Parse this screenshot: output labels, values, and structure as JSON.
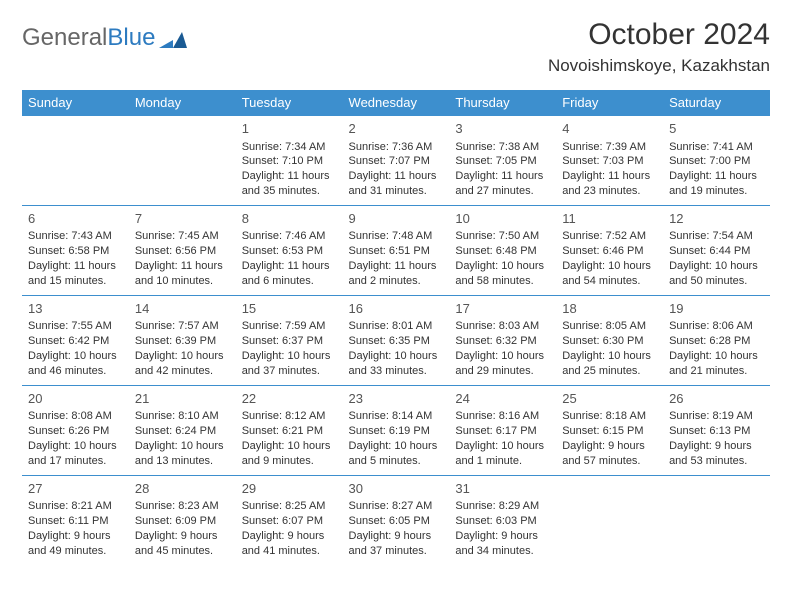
{
  "logo": {
    "word1": "General",
    "word2": "Blue"
  },
  "title": "October 2024",
  "location": "Novoishimskoye, Kazakhstan",
  "day_headers": [
    "Sunday",
    "Monday",
    "Tuesday",
    "Wednesday",
    "Thursday",
    "Friday",
    "Saturday"
  ],
  "colors": {
    "header_bg": "#3d8fce",
    "header_text": "#ffffff",
    "cell_border": "#3d8fce",
    "text": "#333333",
    "logo_gray": "#666666",
    "logo_blue": "#2d7bc0",
    "background": "#ffffff"
  },
  "fonts": {
    "title_size_pt": 22,
    "location_size_pt": 13,
    "header_size_pt": 10,
    "body_size_pt": 8,
    "daynum_size_pt": 10
  },
  "layout": {
    "columns": 7,
    "rows": 5,
    "leading_blanks": 2,
    "last_day": 31
  },
  "days": {
    "1": {
      "sunrise": "Sunrise: 7:34 AM",
      "sunset": "Sunset: 7:10 PM",
      "daylight": "Daylight: 11 hours and 35 minutes."
    },
    "2": {
      "sunrise": "Sunrise: 7:36 AM",
      "sunset": "Sunset: 7:07 PM",
      "daylight": "Daylight: 11 hours and 31 minutes."
    },
    "3": {
      "sunrise": "Sunrise: 7:38 AM",
      "sunset": "Sunset: 7:05 PM",
      "daylight": "Daylight: 11 hours and 27 minutes."
    },
    "4": {
      "sunrise": "Sunrise: 7:39 AM",
      "sunset": "Sunset: 7:03 PM",
      "daylight": "Daylight: 11 hours and 23 minutes."
    },
    "5": {
      "sunrise": "Sunrise: 7:41 AM",
      "sunset": "Sunset: 7:00 PM",
      "daylight": "Daylight: 11 hours and 19 minutes."
    },
    "6": {
      "sunrise": "Sunrise: 7:43 AM",
      "sunset": "Sunset: 6:58 PM",
      "daylight": "Daylight: 11 hours and 15 minutes."
    },
    "7": {
      "sunrise": "Sunrise: 7:45 AM",
      "sunset": "Sunset: 6:56 PM",
      "daylight": "Daylight: 11 hours and 10 minutes."
    },
    "8": {
      "sunrise": "Sunrise: 7:46 AM",
      "sunset": "Sunset: 6:53 PM",
      "daylight": "Daylight: 11 hours and 6 minutes."
    },
    "9": {
      "sunrise": "Sunrise: 7:48 AM",
      "sunset": "Sunset: 6:51 PM",
      "daylight": "Daylight: 11 hours and 2 minutes."
    },
    "10": {
      "sunrise": "Sunrise: 7:50 AM",
      "sunset": "Sunset: 6:48 PM",
      "daylight": "Daylight: 10 hours and 58 minutes."
    },
    "11": {
      "sunrise": "Sunrise: 7:52 AM",
      "sunset": "Sunset: 6:46 PM",
      "daylight": "Daylight: 10 hours and 54 minutes."
    },
    "12": {
      "sunrise": "Sunrise: 7:54 AM",
      "sunset": "Sunset: 6:44 PM",
      "daylight": "Daylight: 10 hours and 50 minutes."
    },
    "13": {
      "sunrise": "Sunrise: 7:55 AM",
      "sunset": "Sunset: 6:42 PM",
      "daylight": "Daylight: 10 hours and 46 minutes."
    },
    "14": {
      "sunrise": "Sunrise: 7:57 AM",
      "sunset": "Sunset: 6:39 PM",
      "daylight": "Daylight: 10 hours and 42 minutes."
    },
    "15": {
      "sunrise": "Sunrise: 7:59 AM",
      "sunset": "Sunset: 6:37 PM",
      "daylight": "Daylight: 10 hours and 37 minutes."
    },
    "16": {
      "sunrise": "Sunrise: 8:01 AM",
      "sunset": "Sunset: 6:35 PM",
      "daylight": "Daylight: 10 hours and 33 minutes."
    },
    "17": {
      "sunrise": "Sunrise: 8:03 AM",
      "sunset": "Sunset: 6:32 PM",
      "daylight": "Daylight: 10 hours and 29 minutes."
    },
    "18": {
      "sunrise": "Sunrise: 8:05 AM",
      "sunset": "Sunset: 6:30 PM",
      "daylight": "Daylight: 10 hours and 25 minutes."
    },
    "19": {
      "sunrise": "Sunrise: 8:06 AM",
      "sunset": "Sunset: 6:28 PM",
      "daylight": "Daylight: 10 hours and 21 minutes."
    },
    "20": {
      "sunrise": "Sunrise: 8:08 AM",
      "sunset": "Sunset: 6:26 PM",
      "daylight": "Daylight: 10 hours and 17 minutes."
    },
    "21": {
      "sunrise": "Sunrise: 8:10 AM",
      "sunset": "Sunset: 6:24 PM",
      "daylight": "Daylight: 10 hours and 13 minutes."
    },
    "22": {
      "sunrise": "Sunrise: 8:12 AM",
      "sunset": "Sunset: 6:21 PM",
      "daylight": "Daylight: 10 hours and 9 minutes."
    },
    "23": {
      "sunrise": "Sunrise: 8:14 AM",
      "sunset": "Sunset: 6:19 PM",
      "daylight": "Daylight: 10 hours and 5 minutes."
    },
    "24": {
      "sunrise": "Sunrise: 8:16 AM",
      "sunset": "Sunset: 6:17 PM",
      "daylight": "Daylight: 10 hours and 1 minute."
    },
    "25": {
      "sunrise": "Sunrise: 8:18 AM",
      "sunset": "Sunset: 6:15 PM",
      "daylight": "Daylight: 9 hours and 57 minutes."
    },
    "26": {
      "sunrise": "Sunrise: 8:19 AM",
      "sunset": "Sunset: 6:13 PM",
      "daylight": "Daylight: 9 hours and 53 minutes."
    },
    "27": {
      "sunrise": "Sunrise: 8:21 AM",
      "sunset": "Sunset: 6:11 PM",
      "daylight": "Daylight: 9 hours and 49 minutes."
    },
    "28": {
      "sunrise": "Sunrise: 8:23 AM",
      "sunset": "Sunset: 6:09 PM",
      "daylight": "Daylight: 9 hours and 45 minutes."
    },
    "29": {
      "sunrise": "Sunrise: 8:25 AM",
      "sunset": "Sunset: 6:07 PM",
      "daylight": "Daylight: 9 hours and 41 minutes."
    },
    "30": {
      "sunrise": "Sunrise: 8:27 AM",
      "sunset": "Sunset: 6:05 PM",
      "daylight": "Daylight: 9 hours and 37 minutes."
    },
    "31": {
      "sunrise": "Sunrise: 8:29 AM",
      "sunset": "Sunset: 6:03 PM",
      "daylight": "Daylight: 9 hours and 34 minutes."
    }
  }
}
